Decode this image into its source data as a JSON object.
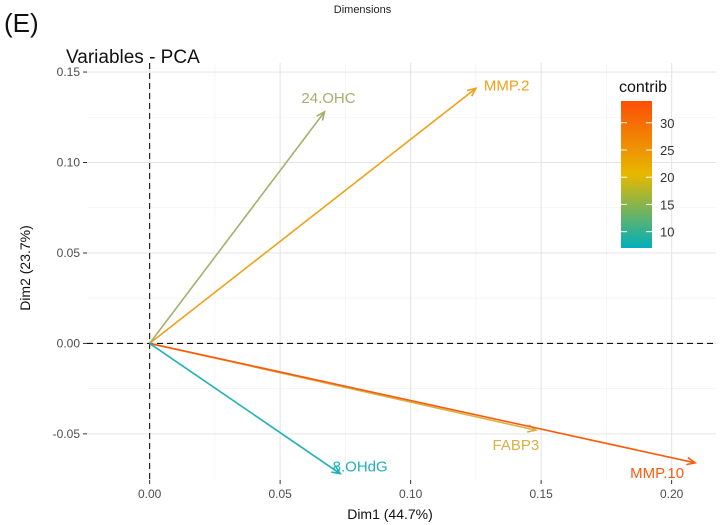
{
  "caption": {
    "cut_line": "…",
    "text": "Dimensions"
  },
  "panel_label": "(E)",
  "chart_data": {
    "type": "scatter",
    "subtype": "pca-variable-arrows",
    "title": "Variables - PCA",
    "xlabel": "Dim1 (44.7%)",
    "ylabel": "Dim2 (23.7%)",
    "xlim": [
      -0.024,
      0.217
    ],
    "ylim": [
      -0.0755,
      0.155
    ],
    "xticks": [
      0.0,
      0.05,
      0.1,
      0.15,
      0.2
    ],
    "xtick_labels": [
      "0.00",
      "0.05",
      "0.10",
      "0.15",
      "0.20"
    ],
    "yticks": [
      -0.05,
      0.0,
      0.05,
      0.1,
      0.15
    ],
    "ytick_labels": [
      "-0.05",
      "0.00",
      "0.05",
      "0.10",
      "0.15"
    ],
    "grid": true,
    "reference_lines": {
      "x": 0,
      "y": 0,
      "style": "dashed"
    },
    "legend": {
      "title": "contrib",
      "placement": "right",
      "type": "gradient",
      "ticks": [
        10,
        15,
        20,
        25,
        30
      ],
      "range": [
        7,
        34
      ],
      "colors": [
        "#00AFBB",
        "#E7B800",
        "#FC4E07"
      ]
    },
    "variables": [
      {
        "name": "MMP.2",
        "x": 0.125,
        "y": 0.141,
        "contrib": 24,
        "color": "#EEA116"
      },
      {
        "name": "24.OHC",
        "x": 0.067,
        "y": 0.128,
        "contrib": 15,
        "color": "#A8AE6C"
      },
      {
        "name": "FABP3",
        "x": 0.148,
        "y": -0.048,
        "contrib": 18,
        "color": "#D6B144"
      },
      {
        "name": "MMP.10",
        "x": 0.209,
        "y": -0.066,
        "contrib": 33,
        "color": "#FC5A0C"
      },
      {
        "name": "8.OHdG",
        "x": 0.073,
        "y": -0.072,
        "contrib": 7,
        "color": "#1FB1B9"
      }
    ]
  }
}
